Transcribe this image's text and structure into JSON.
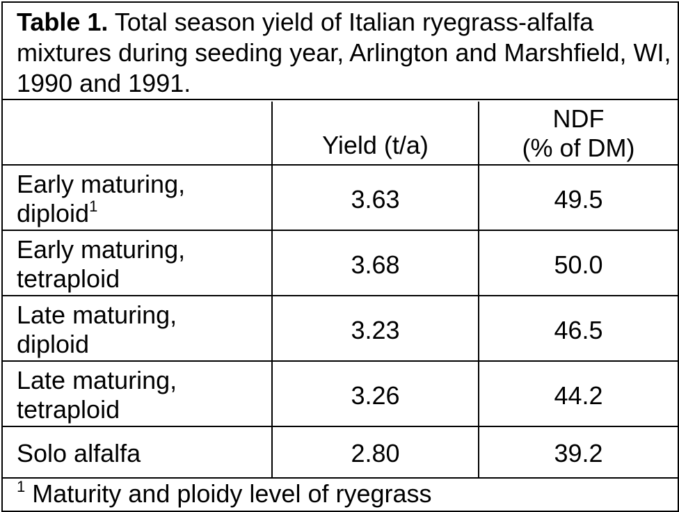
{
  "table": {
    "caption_label": "Table 1.",
    "caption_text": " Total season yield of Italian ryegrass-alfalfa mixtures during seeding year, Arlington and Marshfield, WI, 1990 and 1991.",
    "headers": {
      "yield": "Yield (t/a)",
      "ndf_line1": "NDF",
      "ndf_line2": "(% of DM)"
    },
    "rows": [
      {
        "label_line1": "Early maturing,",
        "label_line2": "diploid",
        "footnote_mark": "1",
        "yield": "3.63",
        "ndf": "49.5"
      },
      {
        "label_line1": "Early maturing,",
        "label_line2": "tetraploid",
        "footnote_mark": "",
        "yield": "3.68",
        "ndf": "50.0"
      },
      {
        "label_line1": "Late maturing,",
        "label_line2": "diploid",
        "footnote_mark": "",
        "yield": "3.23",
        "ndf": "46.5"
      },
      {
        "label_line1": "Late maturing,",
        "label_line2": "tetraploid",
        "footnote_mark": "",
        "yield": "3.26",
        "ndf": "44.2"
      },
      {
        "label_line1": "Solo alfalfa",
        "label_line2": "",
        "footnote_mark": "",
        "yield": "2.80",
        "ndf": "39.2"
      }
    ],
    "footnote": {
      "mark": "1",
      "text": " Maturity and ploidy level of ryegrass"
    }
  }
}
